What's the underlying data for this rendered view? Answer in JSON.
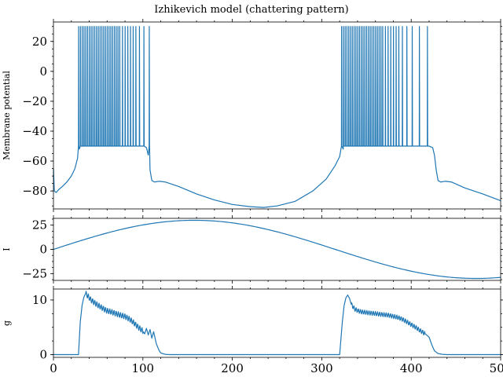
{
  "chart_data": {
    "type": "line",
    "title": "Izhikevich model (chattering pattern)",
    "x_range": [
      0,
      500
    ],
    "x_ticks": [
      0,
      100,
      200,
      300,
      400,
      500
    ],
    "x_tick_labels": [
      "0",
      "100",
      "200",
      "300",
      "400",
      "500"
    ],
    "grid": false,
    "legend": "none",
    "color": "#1f77b4",
    "panels": [
      {
        "name": "membrane-potential",
        "ylabel": "Membrane potential",
        "ylim": [
          -92,
          33
        ],
        "y_ticks": [
          20,
          0,
          -20,
          -40,
          -60,
          -80
        ],
        "y_tick_labels": [
          "20",
          "0",
          "−20",
          "−40",
          "−60",
          "−80"
        ]
      },
      {
        "name": "current",
        "ylabel": "I",
        "ylim": [
          -32,
          32
        ],
        "y_ticks": [
          25,
          0,
          -25
        ],
        "y_tick_labels": [
          "25",
          "0",
          "−25"
        ]
      },
      {
        "name": "conductance",
        "ylabel": "g",
        "ylim": [
          -0.5,
          12
        ],
        "y_ticks": [
          10,
          0
        ],
        "y_tick_labels": [
          "10",
          "0"
        ]
      }
    ],
    "series": [
      {
        "panel": "membrane-potential",
        "x": [
          0,
          1,
          3,
          6,
          10,
          15,
          20,
          24,
          27,
          29,
          30,
          100,
          104,
          106,
          108,
          110,
          113,
          118,
          125,
          140,
          160,
          180,
          200,
          220,
          235,
          250,
          270,
          290,
          305,
          315,
          320,
          324,
          325,
          420,
          424,
          426,
          428,
          430,
          433,
          438,
          445,
          460,
          480,
          500
        ],
        "y": [
          -65,
          -80,
          -81,
          -79,
          -77,
          -74,
          -70,
          -65,
          -58,
          -52,
          -50,
          -50,
          -51,
          -56,
          -66,
          -73,
          -74,
          -73.5,
          -74,
          -77,
          -82,
          -86,
          -89,
          -90.5,
          -91,
          -90,
          -87,
          -80,
          -72,
          -63,
          -57,
          -52,
          -50,
          -50,
          -51,
          -56,
          -66,
          -73,
          -74,
          -73.5,
          -74,
          -78,
          -82,
          -86.5
        ],
        "spikes": {
          "baseline": -50,
          "bursts": [
            {
              "x": [
                28,
                30,
                32,
                34,
                36,
                38,
                40,
                42,
                44,
                46,
                48,
                50,
                52,
                54,
                56,
                58,
                60,
                62,
                64,
                66,
                68,
                70,
                72,
                74,
                77,
                80,
                83,
                86,
                89,
                92,
                96,
                101,
                107
              ],
              "peak": 30
            },
            {
              "x": [
                322,
                324,
                326,
                328,
                330,
                332,
                334,
                336,
                338,
                340,
                342,
                344,
                346,
                348,
                350,
                352,
                354,
                356,
                358,
                360,
                362,
                364,
                366,
                368,
                371,
                374,
                377,
                380,
                383,
                386,
                390,
                395,
                401,
                409,
                418
              ],
              "peak": 30
            }
          ]
        }
      },
      {
        "panel": "current",
        "function": "sine",
        "amplitude": 30,
        "period": 630,
        "phase": 0,
        "x_range": [
          0,
          500
        ]
      },
      {
        "panel": "conductance",
        "x": [
          0,
          28,
          30,
          32,
          34,
          36,
          38,
          42,
          46,
          50,
          55,
          60,
          65,
          70,
          75,
          80,
          85,
          90,
          95,
          100,
          102,
          104,
          106,
          108,
          110,
          112,
          115,
          118,
          120,
          125,
          130,
          320,
          323,
          325,
          327,
          329,
          331,
          333,
          337,
          341,
          345,
          350,
          355,
          360,
          365,
          370,
          375,
          380,
          385,
          390,
          395,
          400,
          405,
          410,
          415,
          420,
          423,
          426,
          430,
          435,
          440,
          500
        ],
        "y": [
          0,
          0,
          6,
          9,
          10.5,
          11.2,
          10.8,
          10,
          9.5,
          9,
          8.5,
          8,
          7.8,
          7.5,
          7.2,
          7,
          6.5,
          5.8,
          5,
          4.3,
          3.8,
          4.8,
          3.6,
          4.6,
          3,
          4.2,
          2,
          0.8,
          0.3,
          0.05,
          0,
          0,
          6,
          9,
          10.4,
          10.9,
          10.3,
          9.2,
          8.3,
          8,
          7.8,
          7.7,
          7.6,
          7.5,
          7.4,
          7.3,
          7.2,
          7,
          6.8,
          6.5,
          6,
          5.5,
          5,
          4.4,
          3.9,
          3.2,
          1.8,
          0.7,
          0.2,
          0.05,
          0,
          0
        ],
        "ripple_bands": [
          [
            36,
            100,
            0.5
          ],
          [
            333,
            415,
            0.4
          ]
        ]
      }
    ]
  }
}
